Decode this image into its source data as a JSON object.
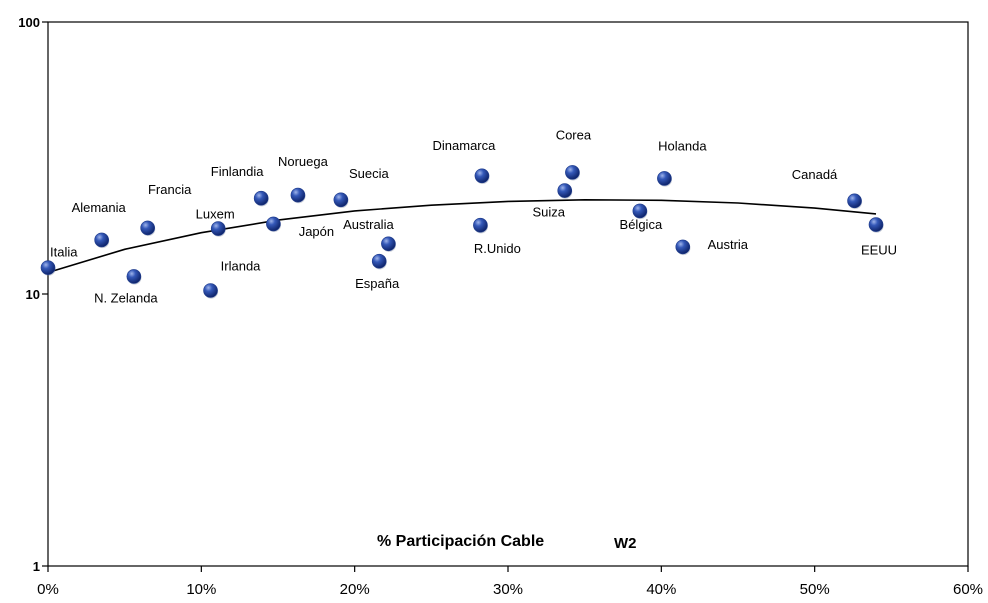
{
  "chart_data": {
    "type": "scatter",
    "xlabel": "% Participación Cable",
    "xlabel_suffix": "W2",
    "xlim": [
      0,
      60
    ],
    "ylim": [
      1,
      100
    ],
    "y_scale": "log",
    "grid": false,
    "x_ticks": [
      "0%",
      "10%",
      "20%",
      "30%",
      "40%",
      "50%",
      "60%"
    ],
    "y_ticks": [
      "1",
      "10",
      "100"
    ],
    "marker_color": "#1f3c8c",
    "line_color": "#000000",
    "points": [
      {
        "label": "Italia",
        "x": 0.0,
        "y": 12.5
      },
      {
        "label": "Alemania",
        "x": 3.5,
        "y": 15.8
      },
      {
        "label": "N. Zelanda",
        "x": 5.6,
        "y": 11.6
      },
      {
        "label": "Francia",
        "x": 6.5,
        "y": 17.5
      },
      {
        "label": "Irlanda",
        "x": 10.6,
        "y": 10.3
      },
      {
        "label": "Luxem",
        "x": 11.1,
        "y": 17.4
      },
      {
        "label": "Finlandia",
        "x": 13.9,
        "y": 22.5
      },
      {
        "label": "Japón",
        "x": 14.7,
        "y": 18.1
      },
      {
        "label": "Noruega",
        "x": 16.3,
        "y": 23.1
      },
      {
        "label": "Suecia",
        "x": 19.1,
        "y": 22.2
      },
      {
        "label": "España",
        "x": 21.6,
        "y": 13.2
      },
      {
        "label": "Australia",
        "x": 22.2,
        "y": 15.3
      },
      {
        "label": "Dinamarca",
        "x": 28.3,
        "y": 27.2
      },
      {
        "label": "R.Unido",
        "x": 28.2,
        "y": 17.9
      },
      {
        "label": "Suiza",
        "x": 33.7,
        "y": 24.0
      },
      {
        "label": "Corea",
        "x": 34.2,
        "y": 28.0
      },
      {
        "label": "Bélgica",
        "x": 38.6,
        "y": 20.2
      },
      {
        "label": "Holanda",
        "x": 40.2,
        "y": 26.6
      },
      {
        "label": "Austria",
        "x": 41.4,
        "y": 14.9
      },
      {
        "label": "Canadá",
        "x": 52.6,
        "y": 22.0
      },
      {
        "label": "EEUU",
        "x": 54.0,
        "y": 18.0
      }
    ],
    "trendline": {
      "x": [
        0,
        5,
        10,
        15,
        20,
        25,
        30,
        35,
        40,
        45,
        50,
        54
      ],
      "y": [
        12.0,
        14.6,
        16.8,
        18.7,
        20.2,
        21.2,
        21.9,
        22.2,
        22.1,
        21.6,
        20.7,
        19.7
      ]
    }
  }
}
